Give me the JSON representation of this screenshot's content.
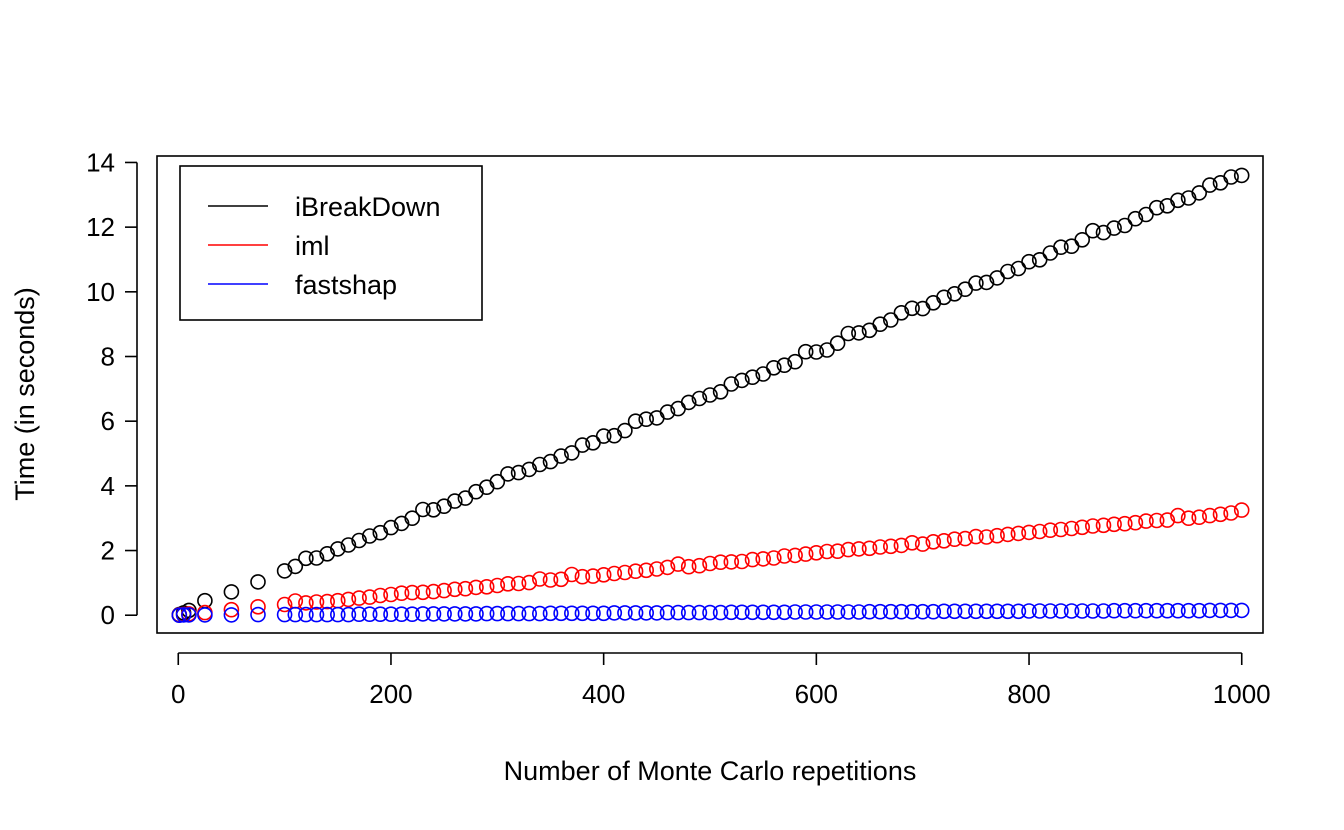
{
  "chart_data": {
    "type": "scatter",
    "title": "",
    "xlabel": "Number of Monte Carlo repetitions",
    "ylabel": "Time (in seconds)",
    "xlim": [
      -20,
      1020
    ],
    "ylim": [
      -0.55,
      14.2
    ],
    "xticks": [
      0,
      200,
      400,
      600,
      800,
      1000
    ],
    "yticks": [
      0,
      2,
      4,
      6,
      8,
      10,
      12,
      14
    ],
    "grid": false,
    "legend": {
      "placement": "top-left"
    },
    "marker": "open-circle",
    "x": [
      1,
      5,
      10,
      25,
      50,
      75,
      100,
      110,
      120,
      130,
      140,
      150,
      160,
      170,
      180,
      190,
      200,
      210,
      220,
      230,
      240,
      250,
      260,
      270,
      280,
      290,
      300,
      310,
      320,
      330,
      340,
      350,
      360,
      370,
      380,
      390,
      400,
      410,
      420,
      430,
      440,
      450,
      460,
      470,
      480,
      490,
      500,
      510,
      520,
      530,
      540,
      550,
      560,
      570,
      580,
      590,
      600,
      610,
      620,
      630,
      640,
      650,
      660,
      670,
      680,
      690,
      700,
      710,
      720,
      730,
      740,
      750,
      760,
      770,
      780,
      790,
      800,
      810,
      820,
      830,
      840,
      850,
      860,
      870,
      880,
      890,
      900,
      910,
      920,
      930,
      940,
      950,
      960,
      970,
      980,
      990,
      1000
    ],
    "series": [
      {
        "name": "iBreakDown",
        "color": "#000000",
        "values": [
          0.02,
          0.07,
          0.15,
          0.45,
          0.72,
          1.03,
          1.37,
          1.51,
          1.76,
          1.77,
          1.9,
          2.05,
          2.17,
          2.31,
          2.45,
          2.55,
          2.71,
          2.84,
          3.0,
          3.27,
          3.26,
          3.37,
          3.53,
          3.62,
          3.82,
          3.96,
          4.13,
          4.37,
          4.41,
          4.51,
          4.66,
          4.75,
          4.92,
          5.02,
          5.26,
          5.33,
          5.54,
          5.55,
          5.71,
          6.0,
          6.06,
          6.1,
          6.28,
          6.39,
          6.58,
          6.7,
          6.81,
          6.91,
          7.15,
          7.26,
          7.36,
          7.46,
          7.65,
          7.73,
          7.84,
          8.15,
          8.14,
          8.2,
          8.41,
          8.71,
          8.73,
          8.81,
          9.0,
          9.13,
          9.35,
          9.49,
          9.48,
          9.66,
          9.83,
          9.94,
          10.08,
          10.27,
          10.29,
          10.43,
          10.63,
          10.72,
          10.93,
          10.99,
          11.2,
          11.38,
          11.41,
          11.61,
          11.89,
          11.83,
          11.97,
          12.05,
          12.26,
          12.39,
          12.6,
          12.66,
          12.83,
          12.9,
          13.06,
          13.3,
          13.37,
          13.55,
          13.6
        ]
      },
      {
        "name": "iml",
        "color": "#ff0000",
        "values": [
          0.01,
          0.02,
          0.04,
          0.08,
          0.17,
          0.26,
          0.33,
          0.44,
          0.38,
          0.41,
          0.42,
          0.45,
          0.49,
          0.53,
          0.56,
          0.61,
          0.64,
          0.68,
          0.7,
          0.71,
          0.73,
          0.76,
          0.8,
          0.82,
          0.86,
          0.88,
          0.92,
          0.97,
          0.98,
          1.01,
          1.12,
          1.09,
          1.11,
          1.26,
          1.19,
          1.21,
          1.25,
          1.29,
          1.32,
          1.36,
          1.39,
          1.43,
          1.48,
          1.58,
          1.5,
          1.53,
          1.6,
          1.64,
          1.65,
          1.66,
          1.72,
          1.74,
          1.77,
          1.83,
          1.85,
          1.89,
          1.93,
          1.97,
          1.98,
          2.03,
          2.05,
          2.07,
          2.11,
          2.13,
          2.16,
          2.24,
          2.2,
          2.27,
          2.3,
          2.35,
          2.37,
          2.43,
          2.42,
          2.46,
          2.5,
          2.53,
          2.56,
          2.59,
          2.63,
          2.65,
          2.68,
          2.72,
          2.76,
          2.78,
          2.81,
          2.83,
          2.86,
          2.91,
          2.93,
          2.94,
          3.08,
          3.0,
          3.03,
          3.08,
          3.12,
          3.16,
          3.25
        ]
      },
      {
        "name": "fastshap",
        "color": "#0000ff",
        "values": [
          0.0,
          0.01,
          0.01,
          0.01,
          0.01,
          0.02,
          0.02,
          0.02,
          0.02,
          0.02,
          0.02,
          0.02,
          0.02,
          0.03,
          0.03,
          0.03,
          0.03,
          0.03,
          0.03,
          0.04,
          0.04,
          0.04,
          0.04,
          0.04,
          0.04,
          0.05,
          0.05,
          0.05,
          0.05,
          0.05,
          0.05,
          0.06,
          0.06,
          0.06,
          0.06,
          0.06,
          0.06,
          0.07,
          0.07,
          0.07,
          0.07,
          0.07,
          0.08,
          0.08,
          0.08,
          0.08,
          0.08,
          0.08,
          0.09,
          0.09,
          0.09,
          0.09,
          0.09,
          0.09,
          0.1,
          0.1,
          0.1,
          0.1,
          0.1,
          0.1,
          0.1,
          0.11,
          0.11,
          0.11,
          0.11,
          0.11,
          0.11,
          0.11,
          0.12,
          0.12,
          0.12,
          0.12,
          0.12,
          0.12,
          0.12,
          0.12,
          0.13,
          0.13,
          0.13,
          0.13,
          0.13,
          0.13,
          0.13,
          0.13,
          0.14,
          0.14,
          0.14,
          0.14,
          0.14,
          0.14,
          0.14,
          0.14,
          0.14,
          0.15,
          0.15,
          0.15,
          0.15
        ]
      }
    ]
  }
}
